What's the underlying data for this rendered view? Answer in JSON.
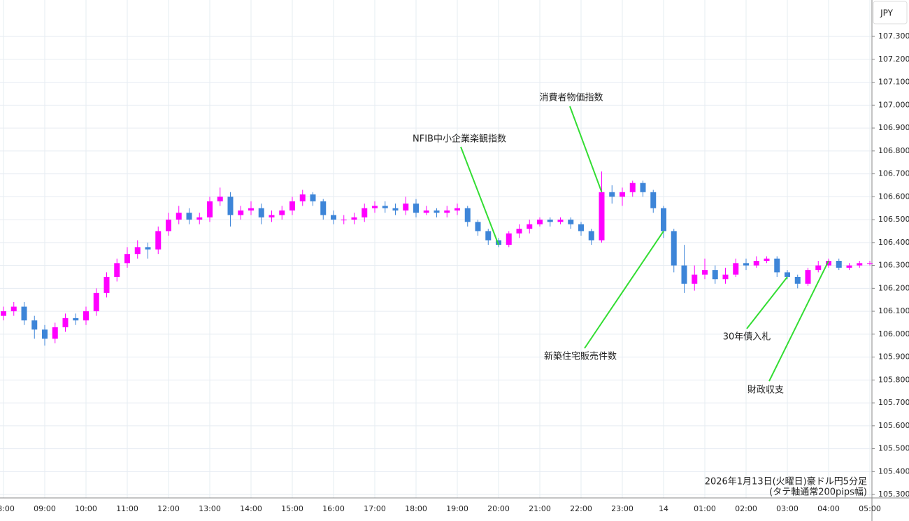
{
  "chart_data": {
    "type": "candlestick",
    "y_axis_label": "JPY",
    "note": [
      "2026年1月13日(火曜日)豪ドル円5分足",
      "(タテ軸通常200pips幅)"
    ],
    "up_color": "#ff00ff",
    "down_color": "#3d85d8",
    "grid": true,
    "ylim": [
      105.285,
      107.459
    ],
    "yticks": [
      {
        "value": 105.3,
        "label": "105.300"
      },
      {
        "value": 105.4,
        "label": "105.400"
      },
      {
        "value": 105.5,
        "label": "105.500"
      },
      {
        "value": 105.6,
        "label": "105.600"
      },
      {
        "value": 105.7,
        "label": "105.700"
      },
      {
        "value": 105.8,
        "label": "105.800"
      },
      {
        "value": 105.9,
        "label": "105.900"
      },
      {
        "value": 106.0,
        "label": "106.000"
      },
      {
        "value": 106.1,
        "label": "106.100"
      },
      {
        "value": 106.2,
        "label": "106.200"
      },
      {
        "value": 106.3,
        "label": "106.300"
      },
      {
        "value": 106.4,
        "label": "106.400"
      },
      {
        "value": 106.5,
        "label": "106.500"
      },
      {
        "value": 106.6,
        "label": "106.600"
      },
      {
        "value": 106.7,
        "label": "106.700"
      },
      {
        "value": 106.8,
        "label": "106.800"
      },
      {
        "value": 106.9,
        "label": "106.900"
      },
      {
        "value": 107.0,
        "label": "107.000"
      },
      {
        "value": 107.1,
        "label": "107.100"
      },
      {
        "value": 107.2,
        "label": "107.200"
      },
      {
        "value": 107.3,
        "label": "107.300"
      }
    ],
    "categories": [
      "08:00",
      null,
      null,
      null,
      "09:00",
      null,
      null,
      null,
      "10:00",
      null,
      null,
      null,
      "11:00",
      null,
      null,
      null,
      "12:00",
      null,
      null,
      null,
      "13:00",
      null,
      null,
      null,
      "14:00",
      null,
      null,
      null,
      "15:00",
      null,
      null,
      null,
      "16:00",
      null,
      null,
      null,
      "17:00",
      null,
      null,
      null,
      "18:00",
      null,
      null,
      null,
      "19:00",
      null,
      null,
      null,
      "20:00",
      null,
      null,
      null,
      "21:00",
      null,
      null,
      null,
      "22:00",
      null,
      null,
      null,
      "23:00",
      null,
      null,
      null,
      "14",
      null,
      null,
      null,
      "01:00",
      null,
      null,
      null,
      "02:00",
      null,
      null,
      null,
      "03:00",
      null,
      null,
      null,
      "04:00",
      null,
      null,
      null,
      "05:00"
    ],
    "open": [
      106.08,
      106.1,
      106.12,
      106.06,
      106.02,
      105.98,
      106.03,
      106.07,
      106.06,
      106.1,
      106.18,
      106.25,
      106.31,
      106.35,
      106.38,
      106.37,
      106.45,
      106.5,
      106.53,
      106.5,
      106.51,
      106.58,
      106.6,
      106.52,
      106.54,
      106.55,
      106.51,
      106.52,
      106.54,
      106.58,
      106.61,
      106.58,
      106.52,
      106.5,
      106.5,
      106.51,
      106.55,
      106.56,
      106.55,
      106.54,
      106.57,
      106.53,
      106.54,
      106.53,
      106.54,
      106.55,
      106.49,
      106.45,
      106.41,
      106.39,
      106.44,
      106.46,
      106.48,
      106.5,
      106.49,
      106.5,
      106.48,
      106.45,
      106.41,
      106.62,
      106.6,
      106.62,
      106.66,
      106.62,
      106.55,
      106.45,
      106.3,
      106.22,
      106.26,
      106.28,
      106.24,
      106.26,
      106.31,
      106.3,
      106.32,
      106.33,
      106.27,
      106.25,
      106.22,
      106.28,
      106.3,
      106.32,
      106.29,
      106.3,
      106.31
    ],
    "high": [
      106.12,
      106.14,
      106.14,
      106.08,
      106.04,
      106.05,
      106.09,
      106.09,
      106.12,
      106.2,
      106.27,
      106.33,
      106.38,
      106.41,
      106.4,
      106.47,
      106.53,
      106.56,
      106.55,
      106.53,
      106.6,
      106.64,
      106.62,
      106.56,
      106.58,
      106.57,
      106.54,
      106.56,
      106.6,
      106.63,
      106.62,
      106.59,
      106.54,
      106.52,
      106.53,
      106.57,
      106.58,
      106.58,
      106.57,
      106.6,
      106.59,
      106.56,
      106.55,
      106.56,
      106.57,
      106.56,
      106.5,
      106.46,
      106.42,
      106.45,
      106.48,
      106.5,
      106.51,
      106.51,
      106.51,
      106.51,
      106.49,
      106.46,
      106.71,
      106.65,
      106.64,
      106.67,
      106.67,
      106.63,
      106.56,
      106.46,
      106.39,
      106.3,
      106.33,
      106.3,
      106.29,
      106.33,
      106.33,
      106.34,
      106.34,
      106.34,
      106.28,
      106.26,
      106.29,
      106.32,
      106.33,
      106.33,
      106.31,
      106.32,
      106.32
    ],
    "low": [
      106.06,
      106.08,
      106.04,
      105.98,
      105.95,
      105.96,
      106.01,
      106.04,
      106.04,
      106.08,
      106.16,
      106.23,
      106.29,
      106.33,
      106.33,
      106.35,
      106.43,
      106.48,
      106.48,
      106.48,
      106.49,
      106.56,
      106.47,
      106.5,
      106.52,
      106.48,
      106.49,
      106.5,
      106.52,
      106.56,
      106.56,
      106.5,
      106.48,
      106.48,
      106.48,
      106.49,
      106.53,
      106.53,
      106.52,
      106.52,
      106.51,
      106.52,
      106.51,
      106.51,
      106.52,
      106.47,
      106.43,
      106.39,
      106.38,
      106.38,
      106.42,
      106.44,
      106.47,
      106.47,
      106.48,
      106.46,
      106.43,
      106.39,
      106.4,
      106.57,
      106.56,
      106.6,
      106.6,
      106.53,
      106.42,
      106.27,
      106.18,
      106.19,
      106.24,
      106.22,
      106.22,
      106.25,
      106.28,
      106.29,
      106.31,
      106.25,
      106.24,
      106.2,
      106.21,
      106.27,
      106.29,
      106.28,
      106.28,
      106.29,
      106.3
    ],
    "close": [
      106.1,
      106.12,
      106.06,
      106.02,
      105.98,
      106.03,
      106.07,
      106.06,
      106.1,
      106.18,
      106.25,
      106.31,
      106.35,
      106.38,
      106.37,
      106.45,
      106.5,
      106.53,
      106.5,
      106.51,
      106.58,
      106.6,
      106.52,
      106.54,
      106.55,
      106.51,
      106.52,
      106.54,
      106.58,
      106.61,
      106.58,
      106.52,
      106.5,
      106.5,
      106.51,
      106.55,
      106.56,
      106.55,
      106.54,
      106.57,
      106.53,
      106.54,
      106.53,
      106.54,
      106.55,
      106.49,
      106.45,
      106.41,
      106.39,
      106.44,
      106.46,
      106.48,
      106.5,
      106.49,
      106.5,
      106.48,
      106.45,
      106.41,
      106.62,
      106.6,
      106.62,
      106.66,
      106.62,
      106.55,
      106.45,
      106.3,
      106.22,
      106.26,
      106.28,
      106.24,
      106.26,
      106.31,
      106.3,
      106.32,
      106.33,
      106.27,
      106.25,
      106.22,
      106.28,
      106.3,
      106.32,
      106.29,
      106.3,
      106.31,
      106.31
    ],
    "annotation_color": "#33dd33",
    "annotations": [
      {
        "text": "NFIB中小企業楽観指数",
        "index": 48
      },
      {
        "text": "消費者物価指数",
        "index": 58
      },
      {
        "text": "新築住宅販売件数",
        "index": 64
      },
      {
        "text": "30年債入札",
        "index": 76
      },
      {
        "text": "財政収支",
        "index": 80
      }
    ]
  }
}
